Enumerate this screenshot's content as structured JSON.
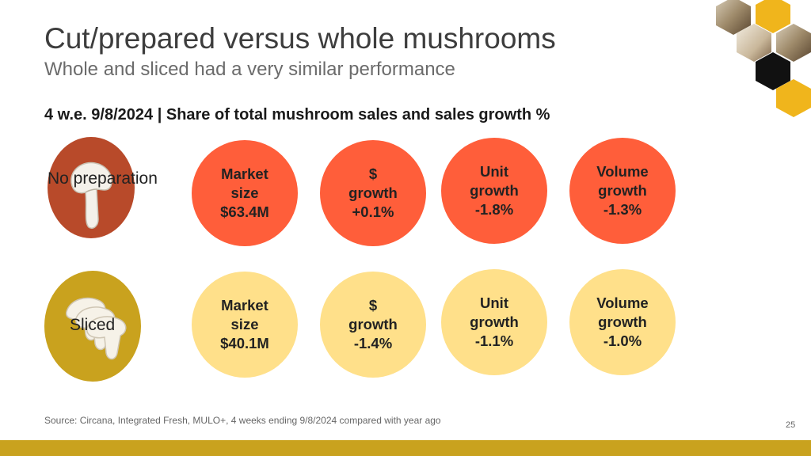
{
  "slide": {
    "title": "Cut/prepared versus whole mushrooms",
    "subtitle": "Whole and sliced had a very similar performance",
    "section_heading": "4 w.e. 9/8/2024 | Share of total mushroom sales and sales growth %",
    "source": "Source: Circana, Integrated Fresh, MULO+, 4 weeks ending 9/8/2024 compared with year ago",
    "page_number": "25"
  },
  "rows": [
    {
      "label": "No preparation",
      "image_icon": "whole-mushroom-icon",
      "metrics": [
        {
          "lines": [
            "Market",
            "size",
            "$63.4M"
          ]
        },
        {
          "lines": [
            "$",
            "growth",
            "+0.1%"
          ]
        },
        {
          "lines": [
            "Unit",
            "growth",
            "-1.8%"
          ]
        },
        {
          "lines": [
            "Volume",
            "growth",
            "-1.3%"
          ]
        }
      ]
    },
    {
      "label": "Sliced",
      "image_icon": "sliced-mushroom-icon",
      "metrics": [
        {
          "lines": [
            "Market",
            "size",
            "$40.1M"
          ]
        },
        {
          "lines": [
            "$",
            "growth",
            "-1.4%"
          ]
        },
        {
          "lines": [
            "Unit",
            "growth",
            "-1.1%"
          ]
        },
        {
          "lines": [
            "Volume",
            "growth",
            "-1.0%"
          ]
        }
      ]
    }
  ],
  "colors": {
    "orange": "#ff5e3a",
    "yellow": "#ffe08a",
    "brown": "#b84a2a",
    "gold": "#c9a21e",
    "black": "#111111"
  },
  "decoration": {
    "corner_icon": "hexagon-photo-collage-icon"
  }
}
